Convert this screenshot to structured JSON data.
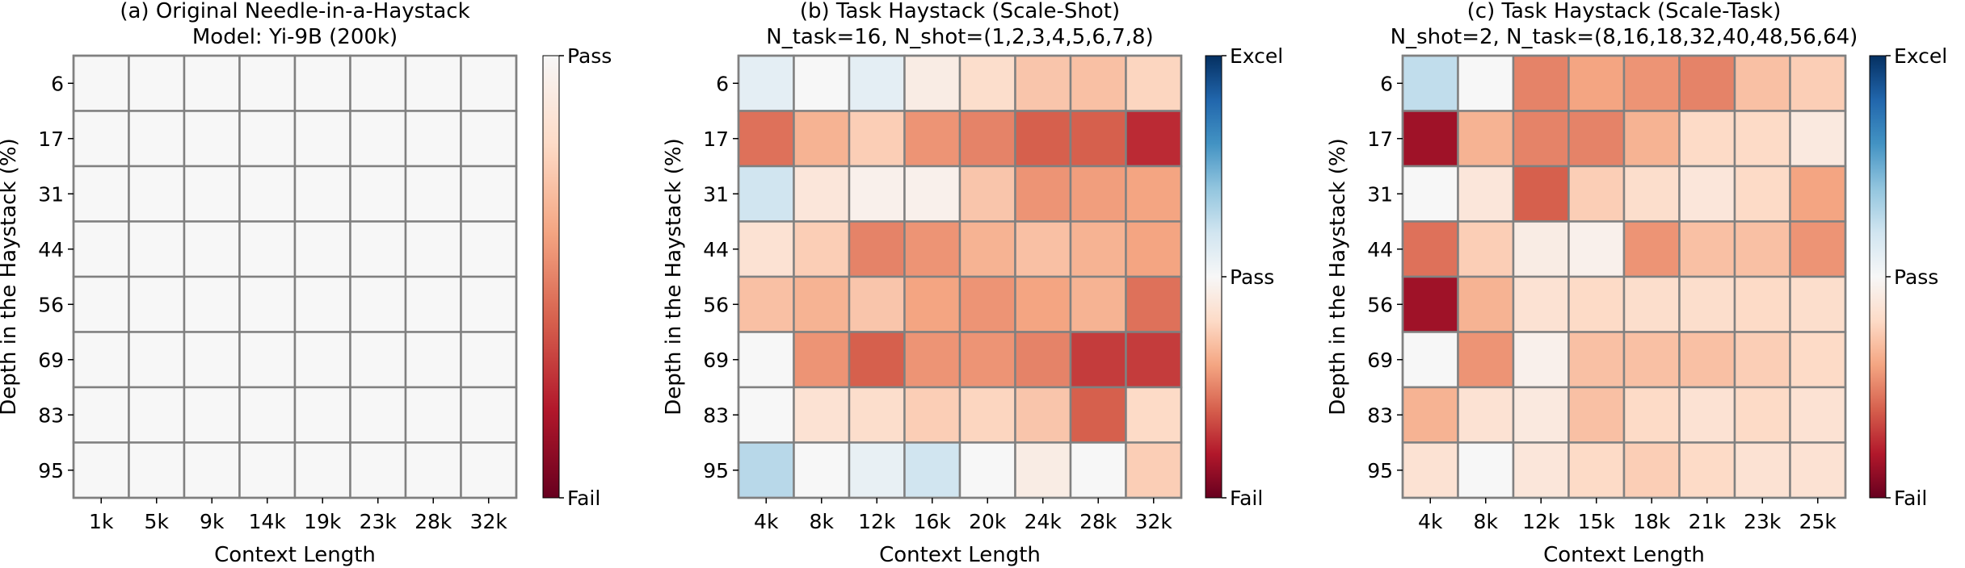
{
  "chart_data": [
    {
      "type": "heatmap",
      "title": "(a) Original Needle-in-a-Haystack",
      "subtitle": "Model: Yi-9B (200k)",
      "xlabel": "Context Length",
      "ylabel": "Depth in the Haystack (%)",
      "x_categories": [
        "1k",
        "5k",
        "9k",
        "14k",
        "19k",
        "23k",
        "28k",
        "32k"
      ],
      "y_categories": [
        "6",
        "17",
        "31",
        "44",
        "56",
        "69",
        "83",
        "95"
      ],
      "colorbar": {
        "top": "Pass",
        "bottom": "Fail",
        "range": [
          -1,
          0
        ]
      },
      "values": [
        [
          0,
          0,
          0,
          0,
          0,
          0,
          0,
          0
        ],
        [
          0,
          0,
          0,
          0,
          0,
          0,
          0,
          0
        ],
        [
          0,
          0,
          0,
          0,
          0,
          0,
          0,
          0
        ],
        [
          0,
          0,
          0,
          0,
          0,
          0,
          0,
          0
        ],
        [
          0,
          0,
          0,
          0,
          0,
          0,
          0,
          0
        ],
        [
          0,
          0,
          0,
          0,
          0,
          0,
          0,
          0
        ],
        [
          0,
          0,
          0,
          0,
          0,
          0,
          0,
          0
        ],
        [
          0,
          0,
          0,
          0,
          0,
          0,
          0,
          0
        ]
      ]
    },
    {
      "type": "heatmap",
      "title": "(b) Task Haystack (Scale-Shot)",
      "subtitle": "N_task=16, N_shot=(1,2,3,4,5,6,7,8)",
      "xlabel": "Context Length",
      "ylabel": "Depth in the Haystack (%)",
      "x_categories": [
        "4k",
        "8k",
        "12k",
        "16k",
        "20k",
        "24k",
        "28k",
        "32k"
      ],
      "y_categories": [
        "6",
        "17",
        "31",
        "44",
        "56",
        "69",
        "83",
        "95"
      ],
      "colorbar": {
        "top": "Excel",
        "middle": "Pass",
        "bottom": "Fail",
        "range": [
          -1,
          1
        ]
      },
      "values": [
        [
          0.1,
          0.0,
          0.1,
          -0.08,
          -0.18,
          -0.28,
          -0.3,
          -0.22
        ],
        [
          -0.55,
          -0.35,
          -0.25,
          -0.45,
          -0.5,
          -0.6,
          -0.6,
          -0.75
        ],
        [
          0.2,
          -0.12,
          -0.05,
          -0.05,
          -0.28,
          -0.45,
          -0.42,
          -0.4
        ],
        [
          -0.15,
          -0.25,
          -0.5,
          -0.45,
          -0.35,
          -0.3,
          -0.35,
          -0.4
        ],
        [
          -0.3,
          -0.35,
          -0.28,
          -0.4,
          -0.45,
          -0.4,
          -0.35,
          -0.55
        ],
        [
          0.0,
          -0.45,
          -0.6,
          -0.45,
          -0.45,
          -0.5,
          -0.7,
          -0.7
        ],
        [
          0.0,
          -0.15,
          -0.18,
          -0.25,
          -0.22,
          -0.28,
          -0.6,
          -0.2
        ],
        [
          0.28,
          0.0,
          0.08,
          0.2,
          0.0,
          -0.08,
          0.0,
          -0.25
        ]
      ]
    },
    {
      "type": "heatmap",
      "title": "(c) Task Haystack (Scale-Task)",
      "subtitle": "N_shot=2, N_task=(8,16,18,32,40,48,56,64)",
      "xlabel": "Context Length",
      "ylabel": "Depth in the Haystack (%)",
      "x_categories": [
        "4k",
        "8k",
        "12k",
        "15k",
        "18k",
        "21k",
        "23k",
        "25k"
      ],
      "y_categories": [
        "6",
        "17",
        "31",
        "44",
        "56",
        "69",
        "83",
        "95"
      ],
      "colorbar": {
        "top": "Excel",
        "middle": "Pass",
        "bottom": "Fail",
        "range": [
          -1,
          1
        ]
      },
      "values": [
        [
          0.25,
          0.0,
          -0.5,
          -0.4,
          -0.45,
          -0.5,
          -0.3,
          -0.25
        ],
        [
          -0.85,
          -0.35,
          -0.5,
          -0.5,
          -0.35,
          -0.2,
          -0.2,
          -0.1
        ],
        [
          0.0,
          -0.12,
          -0.6,
          -0.25,
          -0.18,
          -0.12,
          -0.2,
          -0.4
        ],
        [
          -0.55,
          -0.25,
          -0.08,
          -0.05,
          -0.45,
          -0.3,
          -0.3,
          -0.45
        ],
        [
          -0.85,
          -0.35,
          -0.15,
          -0.2,
          -0.18,
          -0.18,
          -0.2,
          -0.18
        ],
        [
          0.0,
          -0.45,
          -0.05,
          -0.3,
          -0.3,
          -0.3,
          -0.25,
          -0.2
        ],
        [
          -0.35,
          -0.15,
          -0.1,
          -0.3,
          -0.2,
          -0.15,
          -0.2,
          -0.15
        ],
        [
          -0.15,
          0.0,
          -0.12,
          -0.2,
          -0.25,
          -0.2,
          -0.15,
          -0.15
        ]
      ]
    }
  ]
}
